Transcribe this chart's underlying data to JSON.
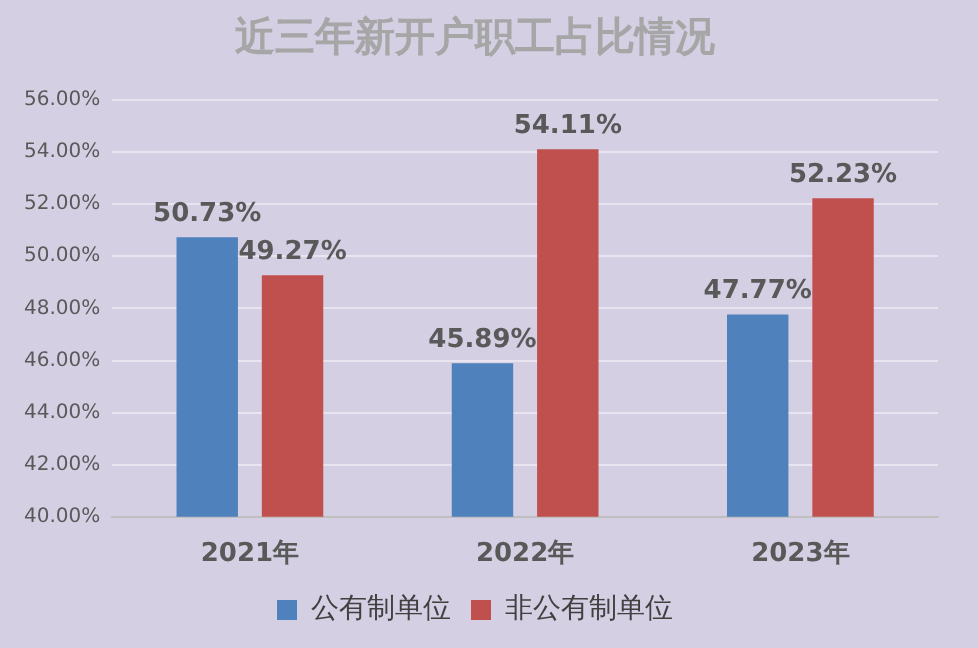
{
  "chart_data": {
    "type": "bar",
    "title": "近三年新开户职工占比情况",
    "categories": [
      "2021年",
      "2022年",
      "2023年"
    ],
    "series": [
      {
        "name": "公有制单位",
        "color": "#4f81bd",
        "values": [
          50.73,
          45.89,
          47.77
        ],
        "value_labels": [
          "50.73%",
          "45.89%",
          "47.77%"
        ]
      },
      {
        "name": "非公有制单位",
        "color": "#c0504d",
        "values": [
          49.27,
          54.11,
          52.23
        ],
        "value_labels": [
          "49.27%",
          "54.11%",
          "52.23%"
        ]
      }
    ],
    "ylim": [
      40,
      56
    ],
    "yticks": [
      {
        "value": 40,
        "label": "40.00%"
      },
      {
        "value": 42,
        "label": "42.00%"
      },
      {
        "value": 44,
        "label": "44.00%"
      },
      {
        "value": 46,
        "label": "46.00%"
      },
      {
        "value": 48,
        "label": "48.00%"
      },
      {
        "value": 50,
        "label": "50.00%"
      },
      {
        "value": 52,
        "label": "52.00%"
      },
      {
        "value": 54,
        "label": "54.00%"
      },
      {
        "value": 56,
        "label": "56.00%"
      }
    ],
    "grid": "y",
    "legend": "bottom"
  }
}
